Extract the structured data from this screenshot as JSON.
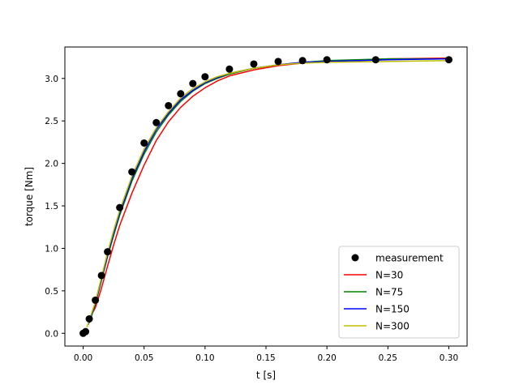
{
  "chart_data": {
    "type": "line",
    "title": "",
    "xlabel": "t [s]",
    "ylabel": "torque [Nm]",
    "xlim": [
      -0.015,
      0.315
    ],
    "ylim": [
      -0.15,
      3.37
    ],
    "xticks": [
      0.0,
      0.05,
      0.1,
      0.15,
      0.2,
      0.25,
      0.3
    ],
    "xtick_labels": [
      "0.00",
      "0.05",
      "0.10",
      "0.15",
      "0.20",
      "0.25",
      "0.30"
    ],
    "yticks": [
      0.0,
      0.5,
      1.0,
      1.5,
      2.0,
      2.5,
      3.0
    ],
    "ytick_labels": [
      "0.0",
      "0.5",
      "1.0",
      "1.5",
      "2.0",
      "2.5",
      "3.0"
    ],
    "grid": false,
    "legend_position": "lower-right",
    "measurement": {
      "name": "measurement",
      "color": "#000000",
      "points": [
        [
          0.0,
          0.0
        ],
        [
          0.002,
          0.02
        ],
        [
          0.005,
          0.17
        ],
        [
          0.01,
          0.39
        ],
        [
          0.015,
          0.68
        ],
        [
          0.02,
          0.96
        ],
        [
          0.03,
          1.48
        ],
        [
          0.04,
          1.9
        ],
        [
          0.05,
          2.24
        ],
        [
          0.06,
          2.48
        ],
        [
          0.07,
          2.68
        ],
        [
          0.08,
          2.82
        ],
        [
          0.09,
          2.94
        ],
        [
          0.1,
          3.02
        ],
        [
          0.12,
          3.11
        ],
        [
          0.14,
          3.17
        ],
        [
          0.16,
          3.2
        ],
        [
          0.18,
          3.21
        ],
        [
          0.2,
          3.22
        ],
        [
          0.24,
          3.22
        ],
        [
          0.3,
          3.22
        ]
      ]
    },
    "series": [
      {
        "name": "N=30",
        "color": "#ff0000",
        "points": [
          [
            0.008,
            0.25
          ],
          [
            0.01,
            0.3
          ],
          [
            0.015,
            0.53
          ],
          [
            0.02,
            0.79
          ],
          [
            0.025,
            1.04
          ],
          [
            0.03,
            1.27
          ],
          [
            0.04,
            1.65
          ],
          [
            0.05,
            1.98
          ],
          [
            0.06,
            2.27
          ],
          [
            0.07,
            2.49
          ],
          [
            0.08,
            2.66
          ],
          [
            0.09,
            2.79
          ],
          [
            0.1,
            2.89
          ],
          [
            0.11,
            2.97
          ],
          [
            0.12,
            3.03
          ],
          [
            0.14,
            3.1
          ],
          [
            0.16,
            3.15
          ],
          [
            0.18,
            3.18
          ],
          [
            0.2,
            3.2
          ],
          [
            0.25,
            3.23
          ],
          [
            0.3,
            3.24
          ]
        ]
      },
      {
        "name": "N=75",
        "color": "#008000",
        "points": [
          [
            0.005,
            0.12
          ],
          [
            0.01,
            0.34
          ],
          [
            0.015,
            0.62
          ],
          [
            0.02,
            0.9
          ],
          [
            0.025,
            1.15
          ],
          [
            0.03,
            1.39
          ],
          [
            0.04,
            1.79
          ],
          [
            0.05,
            2.11
          ],
          [
            0.06,
            2.37
          ],
          [
            0.07,
            2.57
          ],
          [
            0.08,
            2.73
          ],
          [
            0.09,
            2.85
          ],
          [
            0.1,
            2.94
          ],
          [
            0.11,
            3.0
          ],
          [
            0.12,
            3.05
          ],
          [
            0.14,
            3.12
          ],
          [
            0.16,
            3.16
          ],
          [
            0.18,
            3.19
          ],
          [
            0.2,
            3.21
          ],
          [
            0.25,
            3.23
          ],
          [
            0.3,
            3.23
          ]
        ]
      },
      {
        "name": "N=150",
        "color": "#0000ff",
        "points": [
          [
            0.004,
            0.1
          ],
          [
            0.01,
            0.35
          ],
          [
            0.015,
            0.64
          ],
          [
            0.02,
            0.92
          ],
          [
            0.025,
            1.18
          ],
          [
            0.03,
            1.42
          ],
          [
            0.04,
            1.82
          ],
          [
            0.05,
            2.14
          ],
          [
            0.06,
            2.4
          ],
          [
            0.07,
            2.59
          ],
          [
            0.08,
            2.75
          ],
          [
            0.09,
            2.86
          ],
          [
            0.1,
            2.95
          ],
          [
            0.11,
            3.01
          ],
          [
            0.12,
            3.06
          ],
          [
            0.14,
            3.12
          ],
          [
            0.16,
            3.16
          ],
          [
            0.18,
            3.19
          ],
          [
            0.2,
            3.2
          ],
          [
            0.25,
            3.22
          ],
          [
            0.3,
            3.23
          ]
        ]
      },
      {
        "name": "N=300",
        "color": "#bfbf00",
        "points": [
          [
            0.003,
            0.07
          ],
          [
            0.01,
            0.37
          ],
          [
            0.015,
            0.66
          ],
          [
            0.02,
            0.95
          ],
          [
            0.025,
            1.21
          ],
          [
            0.03,
            1.45
          ],
          [
            0.04,
            1.85
          ],
          [
            0.05,
            2.17
          ],
          [
            0.06,
            2.42
          ],
          [
            0.07,
            2.61
          ],
          [
            0.08,
            2.77
          ],
          [
            0.09,
            2.88
          ],
          [
            0.1,
            2.96
          ],
          [
            0.11,
            3.02
          ],
          [
            0.12,
            3.06
          ],
          [
            0.14,
            3.12
          ],
          [
            0.16,
            3.16
          ],
          [
            0.18,
            3.18
          ],
          [
            0.2,
            3.19
          ],
          [
            0.25,
            3.2
          ],
          [
            0.3,
            3.21
          ]
        ]
      }
    ]
  }
}
